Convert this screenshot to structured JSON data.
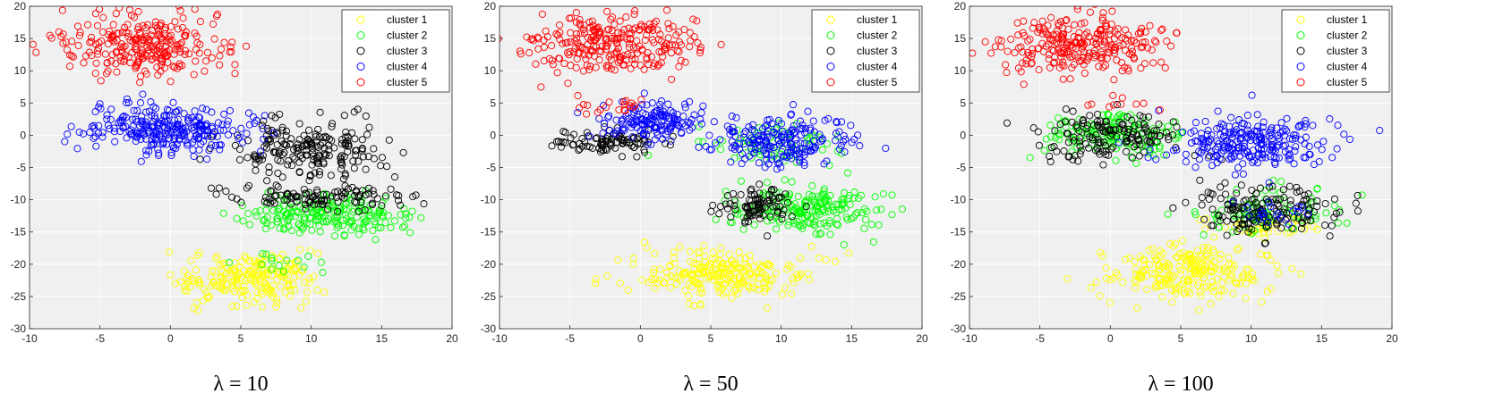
{
  "chart_data": [
    {
      "type": "scatter",
      "caption": "λ = 10",
      "xlim": [
        -10,
        20
      ],
      "ylim": [
        -30,
        20
      ],
      "xticks": [
        -10,
        -5,
        0,
        5,
        10,
        15,
        20
      ],
      "yticks": [
        -30,
        -25,
        -20,
        -15,
        -10,
        -5,
        0,
        5,
        10,
        15,
        20
      ],
      "grid": true,
      "legend_position": "top-right",
      "background": "#f0f0f0",
      "marker": "open-circle",
      "series": [
        {
          "name": "cluster 1",
          "color": "#ffff00",
          "blobs": [
            {
              "cx": 5.5,
              "cy": -22,
              "sx": 2.5,
              "sy": 2,
              "n": 210
            }
          ]
        },
        {
          "name": "cluster 2",
          "color": "#00ff00",
          "blobs": [
            {
              "cx": 11,
              "cy": -12.5,
              "sx": 3,
              "sy": 1.4,
              "n": 200
            },
            {
              "cx": 8,
              "cy": -19.5,
              "sx": 1.5,
              "sy": 1,
              "n": 15
            }
          ]
        },
        {
          "name": "cluster 3",
          "color": "#000000",
          "blobs": [
            {
              "cx": 10,
              "cy": -2,
              "sx": 2.8,
              "sy": 2.2,
              "n": 200
            },
            {
              "cx": 10.5,
              "cy": -9.5,
              "sx": 3,
              "sy": 1,
              "n": 110
            }
          ]
        },
        {
          "name": "cluster 4",
          "color": "#0000ff",
          "blobs": [
            {
              "cx": 0,
              "cy": 1,
              "sx": 3,
              "sy": 1.8,
              "n": 270
            }
          ]
        },
        {
          "name": "cluster 5",
          "color": "#ff0000",
          "blobs": [
            {
              "cx": -2,
              "cy": 14,
              "sx": 3,
              "sy": 2.3,
              "n": 260
            }
          ]
        }
      ]
    },
    {
      "type": "scatter",
      "caption": "λ = 50",
      "xlim": [
        -10,
        20
      ],
      "ylim": [
        -30,
        20
      ],
      "xticks": [
        -10,
        -5,
        0,
        5,
        10,
        15,
        20
      ],
      "yticks": [
        -30,
        -25,
        -20,
        -15,
        -10,
        -5,
        0,
        5,
        10,
        15,
        20
      ],
      "grid": true,
      "legend_position": "top-right",
      "background": "#f0f0f0",
      "marker": "open-circle",
      "series": [
        {
          "name": "cluster 1",
          "color": "#ffff00",
          "blobs": [
            {
              "cx": 6,
              "cy": -21.5,
              "sx": 3,
              "sy": 2,
              "n": 230
            }
          ]
        },
        {
          "name": "cluster 2",
          "color": "#00ff00",
          "blobs": [
            {
              "cx": 12,
              "cy": -11.5,
              "sx": 2.5,
              "sy": 1.8,
              "n": 190
            },
            {
              "cx": 10,
              "cy": -1,
              "sx": 2.5,
              "sy": 2,
              "n": 70
            }
          ]
        },
        {
          "name": "cluster 3",
          "color": "#000000",
          "blobs": [
            {
              "cx": 8.5,
              "cy": -11,
              "sx": 1.5,
              "sy": 1.5,
              "n": 90
            },
            {
              "cx": -2,
              "cy": -1,
              "sx": 2,
              "sy": 1,
              "n": 90
            }
          ]
        },
        {
          "name": "cluster 4",
          "color": "#0000ff",
          "blobs": [
            {
              "cx": 10,
              "cy": -1,
              "sx": 2.5,
              "sy": 2,
              "n": 200
            },
            {
              "cx": 1,
              "cy": 2,
              "sx": 2,
              "sy": 1.4,
              "n": 150
            }
          ]
        },
        {
          "name": "cluster 5",
          "color": "#ff0000",
          "blobs": [
            {
              "cx": -2,
              "cy": 14,
              "sx": 3,
              "sy": 2.3,
              "n": 260
            },
            {
              "cx": -1.5,
              "cy": 4.5,
              "sx": 1.5,
              "sy": 0.8,
              "n": 20
            }
          ]
        }
      ]
    },
    {
      "type": "scatter",
      "caption": "λ = 100",
      "xlim": [
        -10,
        20
      ],
      "ylim": [
        -30,
        20
      ],
      "xticks": [
        -10,
        -5,
        0,
        5,
        10,
        15,
        20
      ],
      "yticks": [
        -30,
        -25,
        -20,
        -15,
        -10,
        -5,
        0,
        5,
        10,
        15,
        20
      ],
      "grid": true,
      "legend_position": "top-right",
      "background": "#f0f0f0",
      "marker": "open-circle",
      "series": [
        {
          "name": "cluster 1",
          "color": "#ffff00",
          "blobs": [
            {
              "cx": 5.5,
              "cy": -21.5,
              "sx": 3,
              "sy": 2,
              "n": 230
            },
            {
              "cx": 11,
              "cy": -14.5,
              "sx": 2,
              "sy": 1,
              "n": 40
            }
          ]
        },
        {
          "name": "cluster 2",
          "color": "#00ff00",
          "blobs": [
            {
              "cx": 0,
              "cy": 0,
              "sx": 2.5,
              "sy": 1.8,
              "n": 140
            },
            {
              "cx": 11,
              "cy": -11.5,
              "sx": 2.5,
              "sy": 1.8,
              "n": 90
            }
          ]
        },
        {
          "name": "cluster 3",
          "color": "#000000",
          "blobs": [
            {
              "cx": 0,
              "cy": 0,
              "sx": 2.5,
              "sy": 1.8,
              "n": 150
            },
            {
              "cx": 11,
              "cy": -11.5,
              "sx": 2.5,
              "sy": 1.8,
              "n": 160
            }
          ]
        },
        {
          "name": "cluster 4",
          "color": "#0000ff",
          "blobs": [
            {
              "cx": 10,
              "cy": -1,
              "sx": 3,
              "sy": 2,
              "n": 240
            },
            {
              "cx": 12,
              "cy": -12,
              "sx": 1.5,
              "sy": 1,
              "n": 20
            }
          ]
        },
        {
          "name": "cluster 5",
          "color": "#ff0000",
          "blobs": [
            {
              "cx": -2,
              "cy": 14,
              "sx": 3,
              "sy": 2.3,
              "n": 260
            },
            {
              "cx": 1,
              "cy": 5,
              "sx": 1.5,
              "sy": 0.8,
              "n": 10
            }
          ]
        }
      ]
    }
  ]
}
